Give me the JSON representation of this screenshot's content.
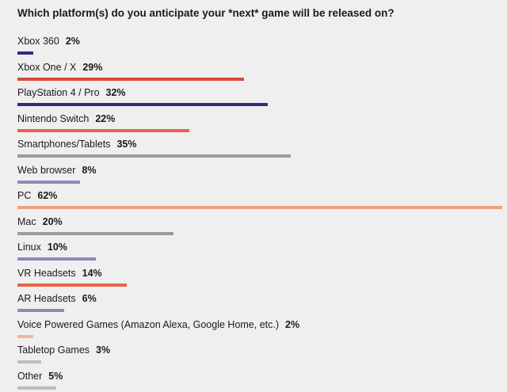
{
  "chart_data": {
    "type": "bar",
    "orientation": "horizontal",
    "title": "Which platform(s) do you anticipate your *next* game will be released on?",
    "categories": [
      "Xbox 360",
      "Xbox One / X",
      "PlayStation 4 / Pro",
      "Nintendo Switch",
      "Smartphones/Tablets",
      "Web browser",
      "PC",
      "Mac",
      "Linux",
      "VR Headsets",
      "AR Headsets",
      "Voice Powered Games (Amazon Alexa, Google Home, etc.)",
      "Tabletop Games",
      "Other"
    ],
    "values": [
      2,
      29,
      32,
      22,
      35,
      8,
      62,
      20,
      10,
      14,
      6,
      2,
      3,
      5
    ],
    "value_labels": [
      "2%",
      "29%",
      "32%",
      "22%",
      "35%",
      "8%",
      "62%",
      "20%",
      "10%",
      "14%",
      "6%",
      "2%",
      "3%",
      "5%"
    ],
    "unit": "%",
    "xlim": [
      0,
      62
    ],
    "grid": false,
    "legend": "none",
    "bar_colors": [
      "#2e2f7f",
      "#d94a38",
      "#2e2f7f",
      "#e4644a",
      "#9c9c9c",
      "#8c8ab8",
      "#f0a080",
      "#9c9c9c",
      "#8c8ab8",
      "#e4644a",
      "#8c8ab8",
      "#f2b896",
      "#bdbdbd",
      "#bdbdbd"
    ]
  }
}
